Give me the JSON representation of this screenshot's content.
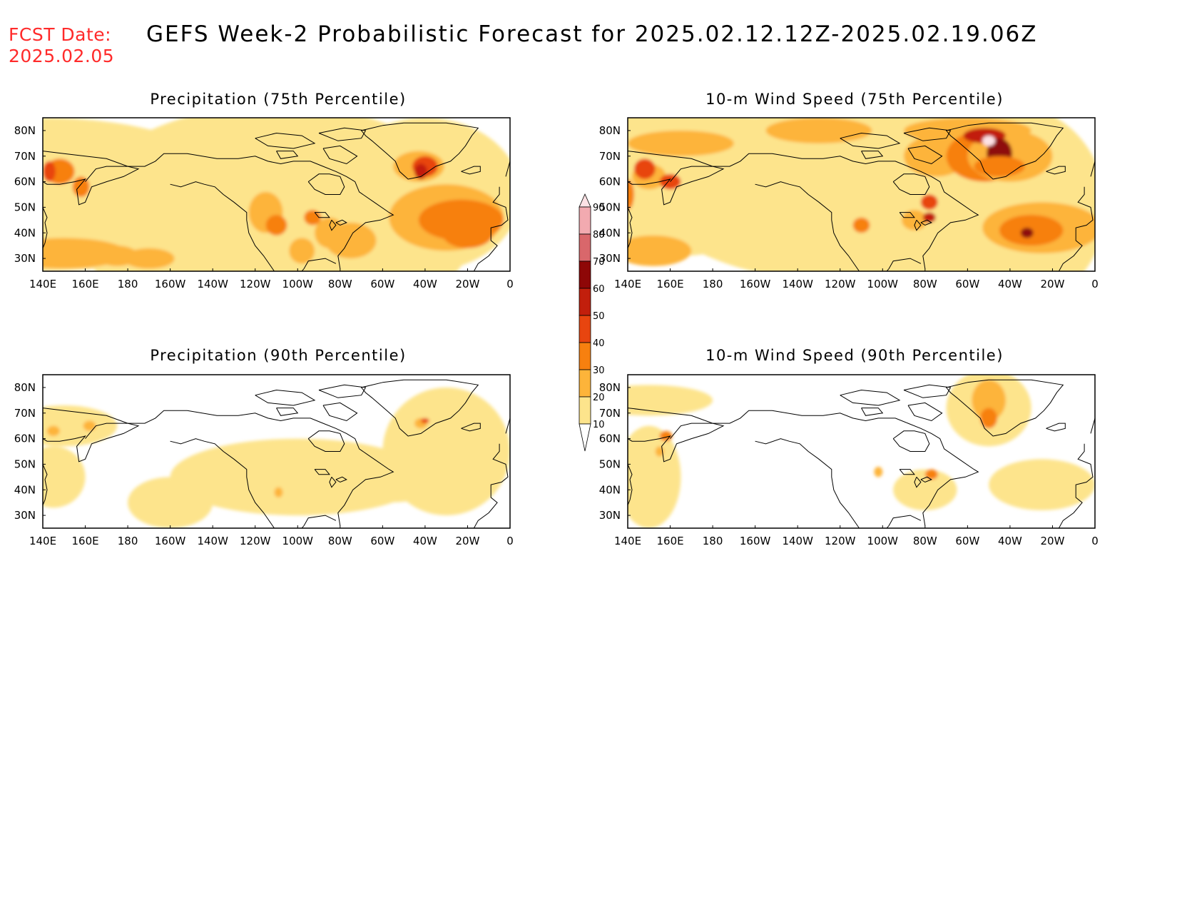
{
  "fcst": {
    "label": "FCST Date:",
    "date": "2025.02.05"
  },
  "title": "GEFS Week-2 Probabilistic Forecast for 2025.02.12.12Z-2025.02.19.06Z",
  "panels": [
    {
      "id": "p1",
      "title": "Precipitation (75th Percentile)",
      "field": "precipitation",
      "percentile": 75
    },
    {
      "id": "p2",
      "title": "10-m Wind Speed (75th Percentile)",
      "field": "wind",
      "percentile": 75
    },
    {
      "id": "p3",
      "title": "Precipitation (90th Percentile)",
      "field": "precipitation",
      "percentile": 90
    },
    {
      "id": "p4",
      "title": "10-m Wind Speed (90th Percentile)",
      "field": "wind",
      "percentile": 90
    }
  ],
  "axes": {
    "lon_labels": [
      "140E",
      "160E",
      "180",
      "160W",
      "140W",
      "120W",
      "100W",
      "80W",
      "60W",
      "40W",
      "20W",
      "0"
    ],
    "lat_labels": [
      "80N",
      "70N",
      "60N",
      "50N",
      "40N",
      "30N"
    ],
    "lon_range_deg_east": [
      140,
      360
    ],
    "lat_range": [
      25,
      85
    ]
  },
  "colorbar": {
    "levels": [
      "10",
      "20",
      "30",
      "40",
      "50",
      "60",
      "70",
      "80",
      "90"
    ],
    "colors": [
      "#fff5b0",
      "#fde48c",
      "#fdb43a",
      "#f7800f",
      "#e8450f",
      "#c21f0c",
      "#8e0707",
      "#d9676b",
      "#f2aab0",
      "#fde2e5"
    ]
  }
}
